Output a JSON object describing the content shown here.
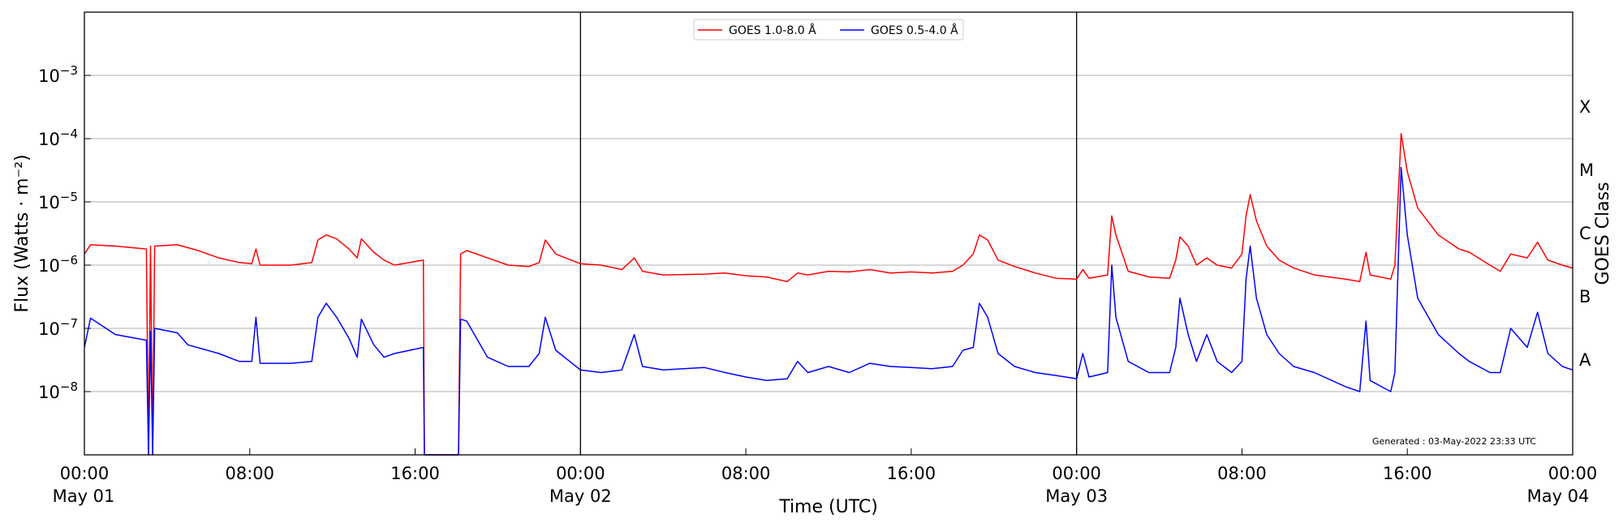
{
  "chart_data": {
    "type": "line",
    "title": "",
    "xlabel": "Time (UTC)",
    "ylabel": "Flux (Watts · m⁻²)",
    "ylabel_right": "GOES Class",
    "yscale": "log",
    "ylim": [
      1e-09,
      0.01
    ],
    "xlim_hours": [
      0,
      72
    ],
    "x_unit": "hours since 2022-05-01 00:00 UTC",
    "grid": "horizontal",
    "legend_position": "top-center",
    "annotation": "Generated : 03-May-2022 23:33 UTC",
    "y_ticks": [
      {
        "value": 1e-08,
        "base": "10",
        "exp": "−8"
      },
      {
        "value": 1e-07,
        "base": "10",
        "exp": "−7"
      },
      {
        "value": 1e-06,
        "base": "10",
        "exp": "−6"
      },
      {
        "value": 1e-05,
        "base": "10",
        "exp": "−5"
      },
      {
        "value": 0.0001,
        "base": "10",
        "exp": "−4"
      },
      {
        "value": 0.001,
        "base": "10",
        "exp": "−3"
      }
    ],
    "x_ticks": [
      {
        "hour": 0,
        "line1": "00:00",
        "line2": "May 01"
      },
      {
        "hour": 8,
        "line1": "08:00",
        "line2": ""
      },
      {
        "hour": 16,
        "line1": "16:00",
        "line2": ""
      },
      {
        "hour": 24,
        "line1": "00:00",
        "line2": "May 02"
      },
      {
        "hour": 32,
        "line1": "08:00",
        "line2": ""
      },
      {
        "hour": 40,
        "line1": "16:00",
        "line2": ""
      },
      {
        "hour": 48,
        "line1": "00:00",
        "line2": "May 03"
      },
      {
        "hour": 56,
        "line1": "08:00",
        "line2": ""
      },
      {
        "hour": 64,
        "line1": "16:00",
        "line2": ""
      },
      {
        "hour": 72,
        "line1": "00:00",
        "line2": "May 04"
      }
    ],
    "day_boundaries_hours": [
      24,
      48
    ],
    "goes_classes": [
      {
        "label": "A",
        "value": 3.16e-08
      },
      {
        "label": "B",
        "value": 3.16e-07
      },
      {
        "label": "C",
        "value": 3.16e-06
      },
      {
        "label": "M",
        "value": 3.16e-05
      },
      {
        "label": "X",
        "value": 0.000316
      }
    ],
    "series": [
      {
        "name": "GOES 1.0-8.0 Å",
        "color": "#ff0000",
        "points": [
          [
            0.0,
            1.5e-06
          ],
          [
            0.3,
            2.1e-06
          ],
          [
            1.5,
            2e-06
          ],
          [
            3.0,
            1.8e-06
          ],
          [
            3.1,
            1e-09
          ],
          [
            3.2,
            2e-06
          ],
          [
            3.3,
            1e-09
          ],
          [
            3.4,
            2e-06
          ],
          [
            4.5,
            2.1e-06
          ],
          [
            5.5,
            1.7e-06
          ],
          [
            6.5,
            1.3e-06
          ],
          [
            7.5,
            1.1e-06
          ],
          [
            8.1,
            1.05e-06
          ],
          [
            8.3,
            1.8e-06
          ],
          [
            8.5,
            1e-06
          ],
          [
            10.0,
            1e-06
          ],
          [
            11.0,
            1.1e-06
          ],
          [
            11.3,
            2.5e-06
          ],
          [
            11.7,
            3e-06
          ],
          [
            12.2,
            2.6e-06
          ],
          [
            12.8,
            1.8e-06
          ],
          [
            13.2,
            1.3e-06
          ],
          [
            13.4,
            2.6e-06
          ],
          [
            14.0,
            1.6e-06
          ],
          [
            14.5,
            1.2e-06
          ],
          [
            15.0,
            1e-06
          ],
          [
            16.4,
            1.2e-06
          ],
          [
            16.45,
            1e-09
          ],
          [
            18.1,
            1e-09
          ],
          [
            18.2,
            1.5e-06
          ],
          [
            18.5,
            1.7e-06
          ],
          [
            19.5,
            1.3e-06
          ],
          [
            20.5,
            1e-06
          ],
          [
            21.5,
            9.5e-07
          ],
          [
            22.0,
            1.1e-06
          ],
          [
            22.3,
            2.5e-06
          ],
          [
            22.8,
            1.5e-06
          ],
          [
            24.0,
            1.05e-06
          ],
          [
            25.0,
            1e-06
          ],
          [
            26.0,
            8.5e-07
          ],
          [
            26.6,
            1.3e-06
          ],
          [
            27.0,
            8e-07
          ],
          [
            28.0,
            7e-07
          ],
          [
            30.0,
            7.2e-07
          ],
          [
            31.0,
            7.5e-07
          ],
          [
            32.0,
            6.8e-07
          ],
          [
            33.0,
            6.5e-07
          ],
          [
            34.0,
            5.5e-07
          ],
          [
            34.5,
            7.5e-07
          ],
          [
            35.0,
            7e-07
          ],
          [
            36.0,
            8e-07
          ],
          [
            37.0,
            7.8e-07
          ],
          [
            38.0,
            8.5e-07
          ],
          [
            39.0,
            7.5e-07
          ],
          [
            40.0,
            7.8e-07
          ],
          [
            41.0,
            7.5e-07
          ],
          [
            42.0,
            8e-07
          ],
          [
            42.5,
            1e-06
          ],
          [
            43.0,
            1.5e-06
          ],
          [
            43.3,
            3e-06
          ],
          [
            43.7,
            2.5e-06
          ],
          [
            44.2,
            1.2e-06
          ],
          [
            45.0,
            9.5e-07
          ],
          [
            46.0,
            7.5e-07
          ],
          [
            47.0,
            6.2e-07
          ],
          [
            48.0,
            6e-07
          ],
          [
            48.3,
            8.5e-07
          ],
          [
            48.6,
            6.2e-07
          ],
          [
            49.5,
            7e-07
          ],
          [
            49.7,
            6e-06
          ],
          [
            49.9,
            3e-06
          ],
          [
            50.5,
            8e-07
          ],
          [
            51.5,
            6.5e-07
          ],
          [
            52.5,
            6.2e-07
          ],
          [
            52.8,
            1.2e-06
          ],
          [
            53.0,
            2.8e-06
          ],
          [
            53.4,
            2e-06
          ],
          [
            53.8,
            1e-06
          ],
          [
            54.3,
            1.3e-06
          ],
          [
            54.8,
            1e-06
          ],
          [
            55.5,
            9e-07
          ],
          [
            56.0,
            1.5e-06
          ],
          [
            56.2,
            6e-06
          ],
          [
            56.4,
            1.3e-05
          ],
          [
            56.7,
            5e-06
          ],
          [
            57.2,
            2e-06
          ],
          [
            57.8,
            1.2e-06
          ],
          [
            58.5,
            9e-07
          ],
          [
            59.5,
            7e-07
          ],
          [
            61.0,
            6e-07
          ],
          [
            61.7,
            5.5e-07
          ],
          [
            62.0,
            1.6e-06
          ],
          [
            62.2,
            7e-07
          ],
          [
            63.2,
            6e-07
          ],
          [
            63.4,
            1e-06
          ],
          [
            63.7,
            0.00012
          ],
          [
            64.0,
            3e-05
          ],
          [
            64.5,
            8e-06
          ],
          [
            65.5,
            3e-06
          ],
          [
            66.5,
            1.8e-06
          ],
          [
            67.0,
            1.6e-06
          ],
          [
            68.0,
            1e-06
          ],
          [
            68.5,
            8e-07
          ],
          [
            69.0,
            1.5e-06
          ],
          [
            69.8,
            1.3e-06
          ],
          [
            70.3,
            2.3e-06
          ],
          [
            70.8,
            1.2e-06
          ],
          [
            71.5,
            1e-06
          ],
          [
            72.0,
            9e-07
          ]
        ]
      },
      {
        "name": "GOES 0.5-4.0 Å",
        "color": "#0000ff",
        "points": [
          [
            0.0,
            5e-08
          ],
          [
            0.3,
            1.45e-07
          ],
          [
            1.5,
            8e-08
          ],
          [
            3.0,
            6.5e-08
          ],
          [
            3.1,
            1e-09
          ],
          [
            3.2,
            9e-08
          ],
          [
            3.3,
            1e-09
          ],
          [
            3.4,
            1e-07
          ],
          [
            4.5,
            8.5e-08
          ],
          [
            5.0,
            5.5e-08
          ],
          [
            6.5,
            4e-08
          ],
          [
            7.5,
            3e-08
          ],
          [
            8.1,
            3e-08
          ],
          [
            8.3,
            1.5e-07
          ],
          [
            8.5,
            2.8e-08
          ],
          [
            10.0,
            2.8e-08
          ],
          [
            11.0,
            3e-08
          ],
          [
            11.3,
            1.5e-07
          ],
          [
            11.7,
            2.5e-07
          ],
          [
            12.2,
            1.5e-07
          ],
          [
            12.8,
            7e-08
          ],
          [
            13.2,
            3.5e-08
          ],
          [
            13.4,
            1.4e-07
          ],
          [
            14.0,
            5.5e-08
          ],
          [
            14.5,
            3.5e-08
          ],
          [
            15.0,
            4e-08
          ],
          [
            16.4,
            5e-08
          ],
          [
            16.45,
            1e-09
          ],
          [
            18.1,
            1e-09
          ],
          [
            18.2,
            1.4e-07
          ],
          [
            18.5,
            1.3e-07
          ],
          [
            19.5,
            3.5e-08
          ],
          [
            20.5,
            2.5e-08
          ],
          [
            21.5,
            2.5e-08
          ],
          [
            22.0,
            4e-08
          ],
          [
            22.3,
            1.5e-07
          ],
          [
            22.8,
            4.5e-08
          ],
          [
            24.0,
            2.2e-08
          ],
          [
            25.0,
            2e-08
          ],
          [
            26.0,
            2.2e-08
          ],
          [
            26.6,
            8e-08
          ],
          [
            27.0,
            2.5e-08
          ],
          [
            28.0,
            2.2e-08
          ],
          [
            30.0,
            2.4e-08
          ],
          [
            31.0,
            2e-08
          ],
          [
            32.0,
            1.7e-08
          ],
          [
            33.0,
            1.5e-08
          ],
          [
            34.0,
            1.6e-08
          ],
          [
            34.5,
            3e-08
          ],
          [
            35.0,
            2e-08
          ],
          [
            36.0,
            2.5e-08
          ],
          [
            37.0,
            2e-08
          ],
          [
            38.0,
            2.8e-08
          ],
          [
            39.0,
            2.5e-08
          ],
          [
            40.0,
            2.4e-08
          ],
          [
            41.0,
            2.3e-08
          ],
          [
            42.0,
            2.5e-08
          ],
          [
            42.5,
            4.5e-08
          ],
          [
            43.0,
            5e-08
          ],
          [
            43.3,
            2.5e-07
          ],
          [
            43.7,
            1.5e-07
          ],
          [
            44.2,
            4e-08
          ],
          [
            45.0,
            2.5e-08
          ],
          [
            46.0,
            2e-08
          ],
          [
            47.0,
            1.8e-08
          ],
          [
            48.0,
            1.6e-08
          ],
          [
            48.3,
            4e-08
          ],
          [
            48.6,
            1.7e-08
          ],
          [
            49.5,
            2e-08
          ],
          [
            49.7,
            1e-06
          ],
          [
            49.9,
            1.5e-07
          ],
          [
            50.5,
            3e-08
          ],
          [
            51.5,
            2e-08
          ],
          [
            52.5,
            2e-08
          ],
          [
            52.8,
            5e-08
          ],
          [
            53.0,
            3e-07
          ],
          [
            53.4,
            8e-08
          ],
          [
            53.8,
            3e-08
          ],
          [
            54.3,
            8e-08
          ],
          [
            54.8,
            3e-08
          ],
          [
            55.5,
            2e-08
          ],
          [
            56.0,
            3e-08
          ],
          [
            56.2,
            6e-07
          ],
          [
            56.4,
            2e-06
          ],
          [
            56.7,
            3e-07
          ],
          [
            57.2,
            8e-08
          ],
          [
            57.8,
            4e-08
          ],
          [
            58.5,
            2.5e-08
          ],
          [
            59.5,
            2e-08
          ],
          [
            61.0,
            1.2e-08
          ],
          [
            61.7,
            1e-08
          ],
          [
            62.0,
            1.3e-07
          ],
          [
            62.2,
            1.5e-08
          ],
          [
            63.2,
            1e-08
          ],
          [
            63.4,
            2e-08
          ],
          [
            63.7,
            3.5e-05
          ],
          [
            64.0,
            3e-06
          ],
          [
            64.5,
            3e-07
          ],
          [
            65.5,
            8e-08
          ],
          [
            66.5,
            4e-08
          ],
          [
            67.0,
            3e-08
          ],
          [
            68.0,
            2e-08
          ],
          [
            68.5,
            2e-08
          ],
          [
            69.0,
            1e-07
          ],
          [
            69.8,
            5e-08
          ],
          [
            70.3,
            1.8e-07
          ],
          [
            70.8,
            4e-08
          ],
          [
            71.5,
            2.5e-08
          ],
          [
            72.0,
            2.2e-08
          ]
        ]
      }
    ]
  }
}
